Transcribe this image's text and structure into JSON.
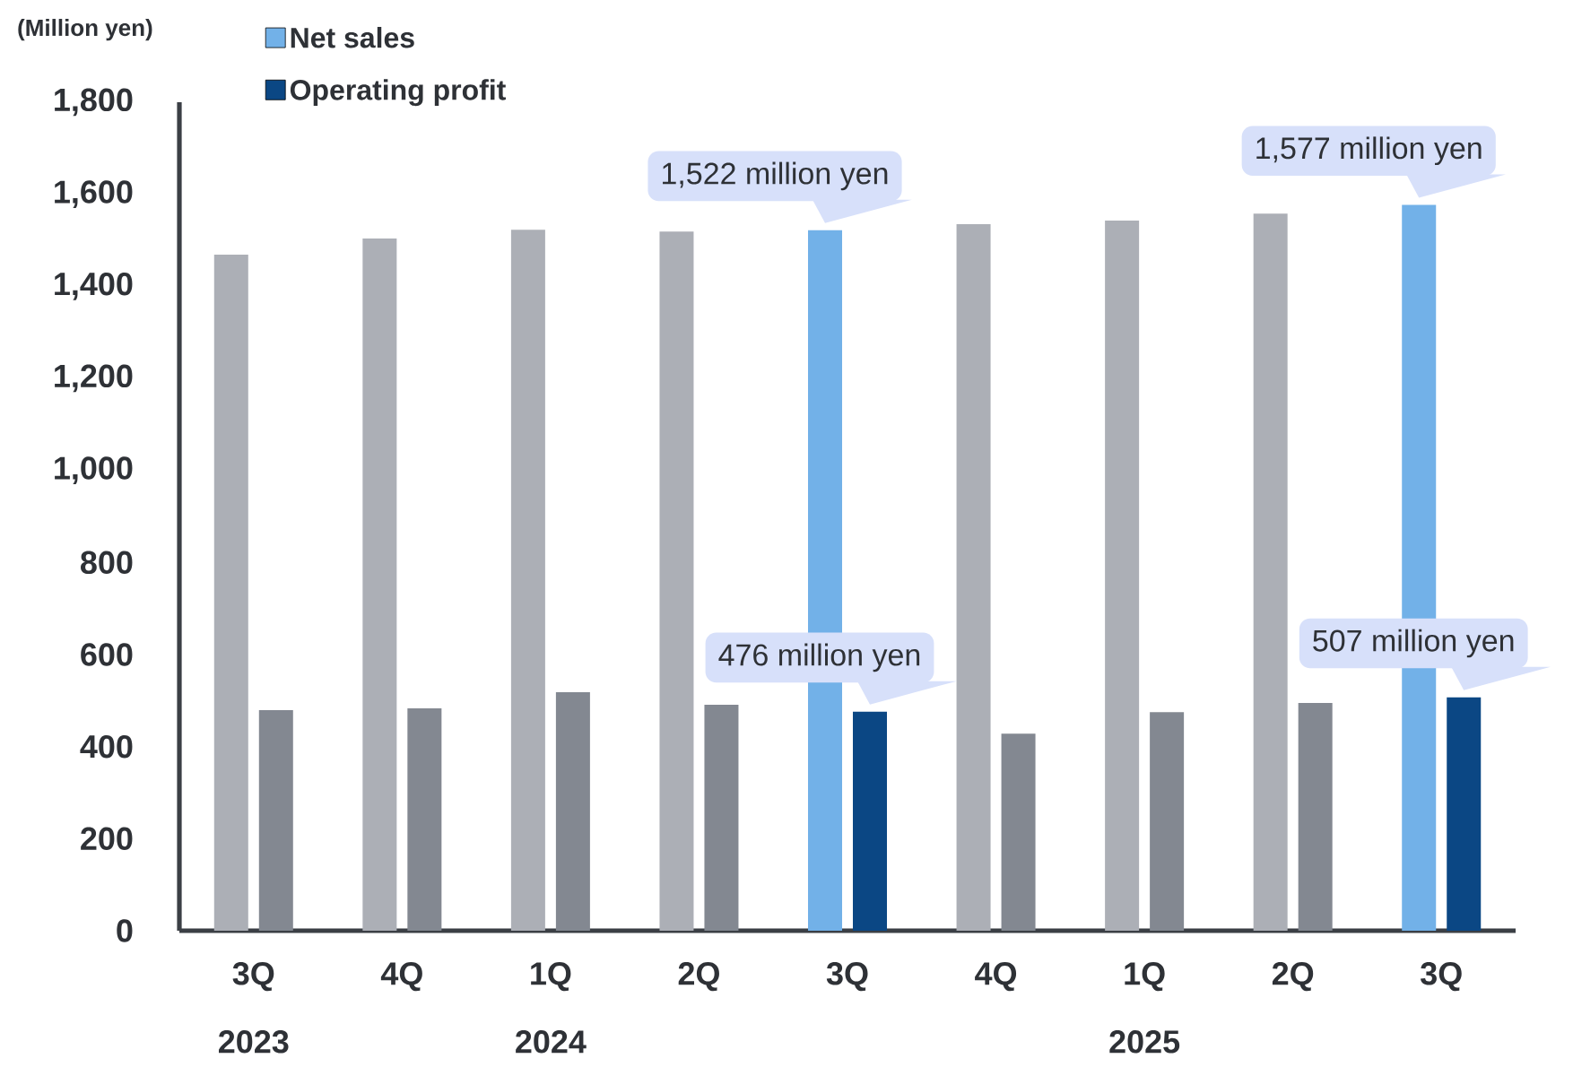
{
  "chart_data": {
    "type": "bar",
    "ylabel": "(Million yen)",
    "categories": [
      "3Q",
      "4Q",
      "1Q",
      "2Q",
      "3Q",
      "4Q",
      "1Q",
      "2Q",
      "3Q"
    ],
    "series": [
      {
        "name": "Net sales",
        "color": "#72b1e8",
        "colors": [
          "#acafb6",
          "#acafb6",
          "#acafb6",
          "#acafb6",
          "#72b1e8",
          "#acafb6",
          "#acafb6",
          "#acafb6",
          "#72b1e8"
        ],
        "values": [
          1469,
          1504,
          1523,
          1519,
          1522,
          1535,
          1543,
          1558,
          1577
        ],
        "value_labels": [
          null,
          null,
          null,
          null,
          "1,522 million yen",
          null,
          null,
          null,
          "1,577 million yen"
        ]
      },
      {
        "name": "Operating profit",
        "color": "#0b4784",
        "colors": [
          "#838891",
          "#838891",
          "#838891",
          "#838891",
          "#0b4784",
          "#838891",
          "#838891",
          "#838891",
          "#0b4784"
        ],
        "values": [
          479,
          483,
          518,
          491,
          476,
          428,
          475,
          495,
          507
        ],
        "value_labels": [
          null,
          null,
          null,
          null,
          "476 million yen",
          null,
          null,
          null,
          "507 million yen"
        ]
      }
    ],
    "annotations": [
      "2023",
      "2024",
      "2025"
    ],
    "ylim": [
      0,
      1800
    ],
    "yticks": [
      0,
      200,
      400,
      600,
      800,
      {
        "value": 1000,
        "label": "1,000"
      },
      {
        "value": 1200,
        "label": "1,200"
      },
      {
        "value": 1400,
        "label": "1,400"
      },
      {
        "value": 1600,
        "label": "1,600"
      },
      {
        "value": 1800,
        "label": "1,800"
      }
    ],
    "grid": false,
    "legend": "top left"
  }
}
